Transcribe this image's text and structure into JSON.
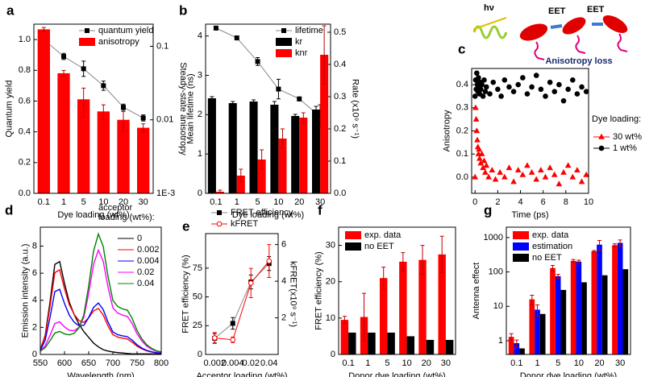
{
  "chart_data": [
    {
      "type": "bar",
      "panel": "a",
      "categories": [
        "0.1",
        "1",
        "5",
        "10",
        "20",
        "30"
      ],
      "xlabel": "Dye loading (wt%)",
      "ylabel": "Quantum yield",
      "y2label": "Steady-state anisotropy",
      "ylim": [
        0,
        1.1
      ],
      "yticks": [
        {
          "value": 0,
          "label": "0.0"
        },
        0.2,
        0.4,
        0.6,
        0.8,
        {
          "value": 1,
          "label": "1.0"
        }
      ],
      "y2lim": [
        0.001,
        0.2
      ],
      "y2log": true,
      "y2ticks": [
        {
          "value": 0.001,
          "label": "1E-3"
        },
        0.01,
        0.1
      ],
      "legend": "upper center",
      "series": [
        {
          "name": "quantum yield",
          "type": "line",
          "marker": "square",
          "color": "#000000",
          "line_color": "#888888",
          "values": [
            1.0,
            0.89,
            0.81,
            0.7,
            0.56,
            0.49
          ],
          "errors": [
            0.02,
            0.02,
            0.05,
            0.03,
            0.02,
            0.02
          ]
        },
        {
          "name": "anisotropy",
          "type": "bar",
          "axis": "y2",
          "color": "#ff0000",
          "values": [
            0.17,
            0.043,
            0.019,
            0.013,
            0.01,
            0.0078
          ],
          "errors": [
            0.01,
            0.004,
            0.008,
            0.003,
            0.003,
            0.001
          ]
        }
      ]
    },
    {
      "type": "bar",
      "panel": "b",
      "categories": [
        "0.1",
        "1",
        "5",
        "10",
        "20",
        "30"
      ],
      "xlabel": "Dye loading (wt%)",
      "ylabel": "Mean lifetime (ns)",
      "y2label": "Rate (x10⁹ s⁻¹)",
      "ylim": [
        0,
        4.3
      ],
      "yticks": [
        0,
        1,
        2,
        3,
        4
      ],
      "y2lim": [
        0,
        0.525
      ],
      "y2ticks": [
        {
          "value": 0,
          "label": "0.0"
        },
        0.1,
        0.2,
        0.3,
        0.4,
        0.5
      ],
      "legend": "upper right",
      "series": [
        {
          "name": "lifetime",
          "type": "line",
          "marker": "square",
          "color": "#000000",
          "line_color": "#888888",
          "values": [
            4.2,
            3.95,
            3.35,
            2.65,
            2.4,
            1.95
          ],
          "errors": [
            0.02,
            0.05,
            0.1,
            0.25,
            0.05,
            0.3
          ]
        },
        {
          "name": "kr",
          "type": "bar",
          "axis": "y2",
          "color": "#000000",
          "values": [
            0.295,
            0.28,
            0.285,
            0.275,
            0.24,
            0.26
          ],
          "errors": [
            0.005,
            0.005,
            0.005,
            0.01,
            0.005,
            0.01
          ]
        },
        {
          "name": "knr",
          "type": "bar",
          "axis": "y2",
          "color": "#ff0000",
          "values": [
            0.005,
            0.055,
            0.105,
            0.17,
            0.235,
            0.43
          ],
          "errors": [
            0.005,
            0.02,
            0.03,
            0.03,
            0.015,
            0.09
          ]
        }
      ]
    },
    {
      "type": "scatter",
      "panel": "c",
      "xlabel": "Time (ps)",
      "ylabel": "Anisotropy",
      "xlim": [
        -0.3,
        10
      ],
      "xticks": [
        0,
        2,
        4,
        6,
        8,
        10
      ],
      "ylim": [
        -0.07,
        0.47
      ],
      "yticks": [
        {
          "value": 0,
          "label": "0.0"
        },
        0.1,
        0.2,
        0.3,
        0.4
      ],
      "legend": "right",
      "legend_title": "Dye loading:",
      "series": [
        {
          "name": "30 wt%",
          "marker": "triangle",
          "color": "#ff0000",
          "line_color": "#ff0000",
          "x": [
            0,
            0.05,
            0.1,
            0.15,
            0.2,
            0.25,
            0.3,
            0.35,
            0.4,
            0.5,
            0.6,
            0.7,
            0.8,
            0.9,
            1.0,
            1.2,
            1.5,
            1.8,
            2.2,
            2.6,
            3.0,
            3.4,
            3.8,
            4.2,
            4.6,
            5.0,
            5.4,
            5.8,
            6.2,
            6.6,
            7.0,
            7.4,
            7.8,
            8.2,
            8.6,
            9.0,
            9.4,
            9.8
          ],
          "values": [
            0.0,
            0.3,
            0.25,
            0.2,
            0.16,
            0.13,
            0.1,
            0.12,
            0.08,
            0.06,
            0.1,
            0.04,
            0.07,
            0.02,
            0.05,
            0.0,
            0.03,
            -0.01,
            0.02,
            0.0,
            0.04,
            -0.02,
            0.03,
            0.01,
            0.05,
            0.02,
            -0.01,
            0.03,
            0.0,
            0.04,
            0.01,
            -0.03,
            0.02,
            0.05,
            0.0,
            0.03,
            -0.02,
            0.01
          ]
        },
        {
          "name": "1 wt%",
          "marker": "circle",
          "color": "#000000",
          "line_color": "#000000",
          "x": [
            0,
            0.05,
            0.1,
            0.15,
            0.2,
            0.25,
            0.3,
            0.35,
            0.4,
            0.45,
            0.5,
            0.6,
            0.7,
            0.8,
            0.9,
            1.0,
            1.3,
            1.6,
            2.0,
            2.3,
            2.6,
            3.0,
            3.4,
            3.8,
            4.2,
            4.6,
            5.0,
            5.4,
            5.8,
            6.2,
            6.6,
            7.0,
            7.4,
            7.8,
            8.2,
            8.6,
            9.0,
            9.4,
            9.8
          ],
          "values": [
            0.35,
            0.42,
            0.38,
            0.45,
            0.4,
            0.37,
            0.43,
            0.39,
            0.36,
            0.41,
            0.38,
            0.4,
            0.35,
            0.42,
            0.37,
            0.39,
            0.36,
            0.41,
            0.38,
            0.35,
            0.42,
            0.39,
            0.37,
            0.4,
            0.43,
            0.36,
            0.39,
            0.44,
            0.38,
            0.35,
            0.41,
            0.37,
            0.4,
            0.33,
            0.38,
            0.42,
            0.36,
            0.39,
            0.37
          ]
        }
      ]
    },
    {
      "type": "line",
      "panel": "d",
      "xlabel": "Wavelength (nm)",
      "ylabel": "Emission intensity (a.u.)",
      "xlim": [
        550,
        800
      ],
      "xticks": [
        550,
        600,
        650,
        700,
        750,
        800
      ],
      "ylim": [
        0,
        9.4
      ],
      "yticks": [
        0,
        2,
        4,
        6,
        8
      ],
      "legend": "upper right",
      "legend_title": "acceptor loading (wt%):",
      "x": [
        550,
        560,
        570,
        580,
        590,
        600,
        610,
        620,
        630,
        640,
        650,
        660,
        670,
        680,
        690,
        700,
        710,
        720,
        730,
        740,
        750,
        760,
        770,
        780,
        790,
        800
      ],
      "series": [
        {
          "name": "0",
          "color": "#000000",
          "values": [
            0.35,
            1.4,
            3.85,
            6.65,
            6.86,
            5.25,
            3.85,
            2.94,
            2.24,
            1.68,
            1.26,
            0.84,
            0.56,
            0.35,
            0.25,
            0.18,
            0.14,
            0.11,
            0.07,
            0.04,
            0.04,
            0.04,
            0.04,
            0.04,
            0.04,
            0.04
          ]
        },
        {
          "name": "0.002",
          "color": "#ff0000",
          "values": [
            0.37,
            1.33,
            3.53,
            6.04,
            6.25,
            4.85,
            3.67,
            2.95,
            2.5,
            2.36,
            2.71,
            3.21,
            3.4,
            2.92,
            2.1,
            1.46,
            1.28,
            1.2,
            1.14,
            0.9,
            0.61,
            0.41,
            0.26,
            0.18,
            0.12,
            0.09
          ]
        },
        {
          "name": "0.004",
          "color": "#0000ff",
          "values": [
            0.3,
            1.04,
            2.72,
            4.64,
            4.81,
            3.76,
            2.89,
            2.38,
            2.12,
            2.15,
            2.73,
            3.47,
            3.8,
            3.31,
            2.39,
            1.66,
            1.46,
            1.37,
            1.31,
            1.05,
            0.71,
            0.47,
            0.3,
            0.2,
            0.13,
            0.09
          ]
        },
        {
          "name": "0.02",
          "color": "#ff00ff",
          "values": [
            0.25,
            0.63,
            1.4,
            2.28,
            2.41,
            2.03,
            1.78,
            1.75,
            2.0,
            2.74,
            4.51,
            6.65,
            7.7,
            6.89,
            4.97,
            3.44,
            3.06,
            2.9,
            2.81,
            2.27,
            1.52,
            0.99,
            0.61,
            0.39,
            0.24,
            0.16
          ]
        },
        {
          "name": "0.04",
          "color": "#008000",
          "values": [
            0.24,
            0.5,
            1.01,
            1.58,
            1.7,
            1.52,
            1.45,
            1.56,
            1.97,
            2.93,
            5.06,
            7.62,
            8.9,
            7.98,
            5.76,
            3.99,
            3.54,
            3.36,
            3.27,
            2.65,
            1.77,
            1.15,
            0.71,
            0.45,
            0.27,
            0.18
          ]
        }
      ]
    },
    {
      "type": "line",
      "panel": "e",
      "categories": [
        "0.002",
        "0.004",
        "0.02",
        "0.04"
      ],
      "xlabel": "Acceptor loading (wt%)",
      "ylabel": "FRET efficiency (%)",
      "y2label": "kFRET(x10⁹ s⁻¹)",
      "ylim": [
        0,
        105
      ],
      "yticks": [
        0,
        25,
        50,
        75
      ],
      "y2lim": [
        0,
        6.6
      ],
      "y2ticks": [
        2,
        4,
        6
      ],
      "legend": "top",
      "series": [
        {
          "name": "FRET efficiency",
          "marker": "square",
          "color": "#000000",
          "line_color": "#888888",
          "values": [
            14,
            27,
            63,
            79
          ],
          "errors": [
            4,
            5,
            6,
            6
          ]
        },
        {
          "name": "kFRET",
          "marker": "circle",
          "open": true,
          "axis": "y2",
          "color": "#ff0000",
          "line_color": "#ff0000",
          "values": [
            0.9,
            0.8,
            3.9,
            5.1
          ],
          "errors": [
            0.3,
            0.15,
            0.8,
            0.9
          ]
        }
      ]
    },
    {
      "type": "bar",
      "panel": "f",
      "categories": [
        "0.1",
        "1",
        "5",
        "10",
        "20",
        "30"
      ],
      "xlabel": "Donor dye loading (wt%)",
      "ylabel": "FRET efficiency (%)",
      "ylim": [
        0,
        35
      ],
      "yticks": [
        0,
        10,
        20,
        30
      ],
      "legend": "upper left",
      "series": [
        {
          "name": "exp. data",
          "color": "#ff0000",
          "values": [
            9.5,
            10.3,
            21,
            25.5,
            26,
            27.5
          ],
          "errors": [
            1,
            6.5,
            3,
            2.5,
            4,
            5
          ]
        },
        {
          "name": "no EET",
          "color": "#000000",
          "values": [
            6,
            6,
            6,
            5,
            4,
            4
          ]
        }
      ]
    },
    {
      "type": "bar",
      "panel": "g",
      "categories": [
        "0.1",
        "1",
        "5",
        "10",
        "20",
        "30"
      ],
      "xlabel": "Donor dye loading (wt%)",
      "ylabel": "Antenna effect",
      "ylim": [
        0.4,
        2000
      ],
      "ylog": true,
      "yticks": [
        1,
        10,
        100,
        1000
      ],
      "legend": "upper left",
      "series": [
        {
          "name": "exp. data",
          "color": "#ff0000",
          "values": [
            1.3,
            16,
            130,
            210,
            400,
            600
          ],
          "errors": [
            0.3,
            5,
            25,
            20,
            20,
            60
          ]
        },
        {
          "name": "estimation",
          "color": "#0000ff",
          "values": [
            0.85,
            8,
            75,
            200,
            620,
            700
          ],
          "errors": [
            0.2,
            3,
            10,
            20,
            200,
            150
          ]
        },
        {
          "name": "no EET",
          "color": "#000000",
          "values": [
            0.6,
            6,
            30,
            50,
            80,
            120
          ]
        }
      ]
    }
  ],
  "diagram": {
    "labels": [
      "hν",
      "EET",
      "EET",
      "Anisotropy loss"
    ]
  }
}
